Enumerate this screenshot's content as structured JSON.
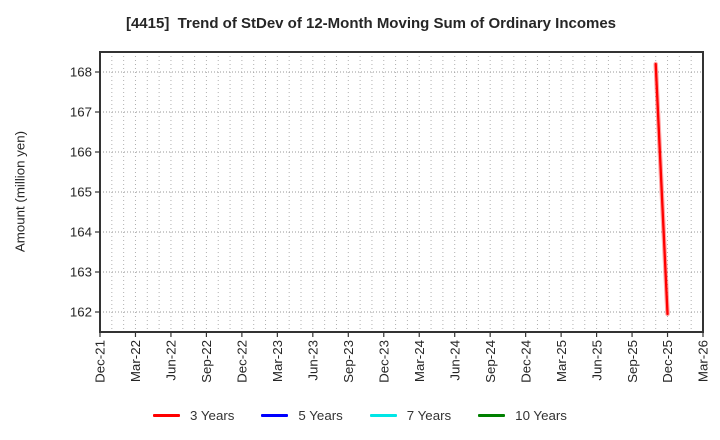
{
  "chart_data": {
    "type": "line",
    "title": "[4415]  Trend of StDev of 12-Month Moving Sum of Ordinary Incomes",
    "ylabel": "Amount (million yen)",
    "xlabel": "",
    "x_tick_labels": [
      "Dec-21",
      "Mar-22",
      "Jun-22",
      "Sep-22",
      "Dec-22",
      "Mar-23",
      "Jun-23",
      "Sep-23",
      "Dec-23",
      "Mar-24",
      "Jun-24",
      "Sep-24",
      "Dec-24",
      "Mar-25",
      "Jun-25",
      "Sep-25",
      "Dec-25",
      "Mar-26"
    ],
    "x_minor_grid_unit": "month",
    "ylim": [
      161.5,
      168.5
    ],
    "y_ticks": [
      162,
      163,
      164,
      165,
      166,
      167,
      168
    ],
    "grid": "dotted, monthly vertical + unit horizontal",
    "legend_position": "bottom-center",
    "frame_color": "#333333",
    "grid_color": "#b0b0b0",
    "tick_label_color": "#262626",
    "series": [
      {
        "name": "3 Years",
        "color": "#ff0000",
        "points": [
          {
            "x": "Nov-25",
            "y": 168.2
          },
          {
            "x": "Dec-25",
            "y": 161.95
          }
        ]
      },
      {
        "name": "5 Years",
        "color": "#0000ff",
        "points": []
      },
      {
        "name": "7 Years",
        "color": "#00e6e6",
        "points": []
      },
      {
        "name": "10 Years",
        "color": "#008000",
        "points": []
      }
    ]
  }
}
